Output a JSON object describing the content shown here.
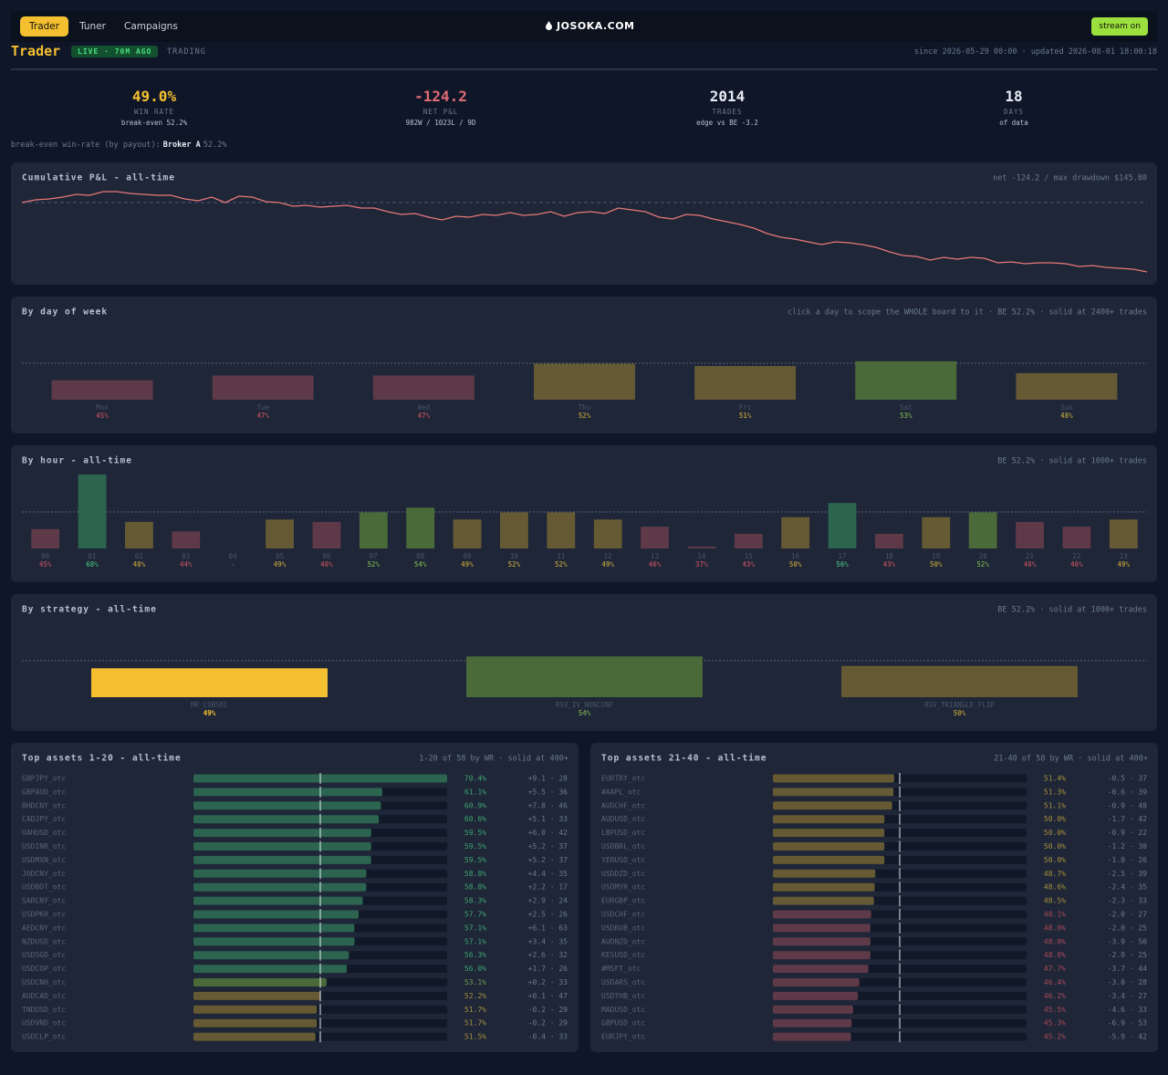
{
  "nav": {
    "tabs": [
      "Trader",
      "Tuner",
      "Campaigns"
    ],
    "active": 0,
    "brand": "JOSOKA.COM",
    "button": "stream on"
  },
  "header": {
    "title": "Trader",
    "badge": "LIVE · 70M AGO",
    "mode": "TRADING",
    "meta": "since 2026-05-29 00:00 · updated 2026-08-01 18:00:18"
  },
  "stats": [
    {
      "value": "49.0%",
      "label": "WIN RATE",
      "sub": "break-even 52.2%",
      "color": "#f5c030"
    },
    {
      "value": "-124.2",
      "label": "NET P&L",
      "sub": "982W / 1023L / 9D",
      "color": "#e06c75"
    },
    {
      "value": "2014",
      "label": "TRADES",
      "sub": "edge vs BE -3.2",
      "color": "#e6ebf2"
    },
    {
      "value": "18",
      "label": "DAYS",
      "sub": "of data",
      "color": "#e6ebf2"
    }
  ],
  "note": {
    "text": "break-even win-rate (by payout):",
    "broker": "Broker A",
    "rate": "52.2%"
  },
  "palette": {
    "bad": {
      "bar": "#5e3a48",
      "text": "#a84a58"
    },
    "mid": {
      "bar": "#665a34",
      "text": "#a88f3a"
    },
    "good": {
      "bar": "#4b6a3a",
      "text": "#6f9a4c"
    },
    "strong": {
      "bar": "#2c6450",
      "text": "#3fa46e"
    },
    "sel": {
      "bar": "#f5c030",
      "text": "#f5c030"
    }
  },
  "chart_data": [
    {
      "type": "line",
      "title": "Cumulative P&L - all-time",
      "subtitle": "net -124.2 / max drawdown $145.80",
      "color": "#e87878",
      "reference": 0,
      "values": [
        0,
        4.9,
        6.5,
        9.8,
        14.7,
        13.1,
        19.6,
        19.6,
        16.3,
        14.7,
        13.1,
        13.1,
        6.5,
        3.3,
        9.8,
        0,
        11.4,
        9.8,
        1.6,
        0,
        -6.5,
        -4.9,
        -8.2,
        -6.5,
        -4.9,
        -9.8,
        -9.8,
        -16.3,
        -21.2,
        -19.6,
        -26.1,
        -31,
        -24.5,
        -26.1,
        -21.2,
        -22.9,
        -18,
        -22.9,
        -21.2,
        -16.3,
        -24.5,
        -18,
        -16.3,
        -19.6,
        -9.8,
        -13.1,
        -16.3,
        -26.1,
        -29.4,
        -21.2,
        -22.9,
        -29.4,
        -34.3,
        -39.2,
        -45.8,
        -55.6,
        -62.1,
        -65.4,
        -70.3,
        -75.2,
        -70.3,
        -71.9,
        -75.2,
        -80.1,
        -88.2,
        -94.8,
        -96.4,
        -102.9,
        -98,
        -101.3,
        -98,
        -99.7,
        -107.8,
        -106.2,
        -109.5,
        -107.8,
        -107.8,
        -109.5,
        -114.4,
        -112.7,
        -116,
        -117.6,
        -119.3,
        -124.2
      ]
    },
    {
      "type": "bar",
      "title": "By day of week",
      "subtitle": "click a day to scope the WHOLE board to it · BE 52.2% · solid at 2400+ trades",
      "reference": 52.2,
      "categories": [
        "Mon",
        "Tue",
        "Wed",
        "Thu",
        "Fri",
        "Sat",
        "Sun"
      ],
      "values": [
        45,
        47,
        47,
        52,
        51,
        53,
        48
      ],
      "value_labels": [
        "45%",
        "47%",
        "47%",
        "52%",
        "51%",
        "53%",
        "48%"
      ],
      "tones": [
        "bad",
        "bad",
        "bad",
        "mid",
        "mid",
        "good",
        "mid"
      ]
    },
    {
      "type": "bar",
      "title": "By hour - all-time",
      "subtitle": "BE 52.2% · solid at 1000+ trades",
      "reference": 52.2,
      "categories": [
        "00",
        "01",
        "02",
        "03",
        "04",
        "05",
        "06",
        "07",
        "08",
        "09",
        "10",
        "11",
        "12",
        "13",
        "14",
        "15",
        "16",
        "17",
        "18",
        "19",
        "20",
        "21",
        "22",
        "23"
      ],
      "values": [
        45,
        68,
        48,
        44,
        null,
        49,
        48,
        52,
        54,
        49,
        52,
        52,
        49,
        46,
        37,
        43,
        50,
        56,
        43,
        50,
        52,
        48,
        46,
        49
      ],
      "value_labels": [
        "45%",
        "68%",
        "48%",
        "44%",
        "-",
        "49%",
        "48%",
        "52%",
        "54%",
        "49%",
        "52%",
        "52%",
        "49%",
        "46%",
        "37%",
        "43%",
        "50%",
        "56%",
        "43%",
        "50%",
        "52%",
        "48%",
        "46%",
        "49%"
      ],
      "tones": [
        "bad",
        "strong",
        "mid",
        "bad",
        null,
        "mid",
        "bad",
        "good",
        "good",
        "mid",
        "mid",
        "mid",
        "mid",
        "bad",
        "bad",
        "bad",
        "mid",
        "strong",
        "bad",
        "mid",
        "good",
        "bad",
        "bad",
        "mid"
      ]
    },
    {
      "type": "bar",
      "title": "By strategy - all-time",
      "subtitle": "BE 52.2% · solid at 1000+ trades",
      "reference": 52.2,
      "categories": [
        "MR_COBSEC",
        "RSV_IV_NONCONF",
        "RSV_TRIANGLE_FLIP"
      ],
      "values": [
        49,
        54,
        50
      ],
      "value_labels": [
        "49%",
        "54%",
        "50%"
      ],
      "tones": [
        "sel",
        "good",
        "mid"
      ]
    }
  ],
  "tables": [
    {
      "title": "Top assets 1-20 - all-time",
      "subtitle": "1-20 of 58 by WR · solid at 400+",
      "reference": 52.2,
      "rows": [
        {
          "asset": "GBPJPY_otc",
          "wr": 70.4,
          "wr_label": "70.4%",
          "stat": "+9.1 · 28",
          "tone": "strong"
        },
        {
          "asset": "GBPAUD_otc",
          "wr": 61.1,
          "wr_label": "61.1%",
          "stat": "+5.5 · 36",
          "tone": "strong"
        },
        {
          "asset": "BHDCNY_otc",
          "wr": 60.9,
          "wr_label": "60.9%",
          "stat": "+7.8 · 46",
          "tone": "strong"
        },
        {
          "asset": "CADJPY_otc",
          "wr": 60.6,
          "wr_label": "60.6%",
          "stat": "+5.1 · 33",
          "tone": "strong"
        },
        {
          "asset": "UAHUSD_otc",
          "wr": 59.5,
          "wr_label": "59.5%",
          "stat": "+6.0 · 42",
          "tone": "strong"
        },
        {
          "asset": "USDINR_otc",
          "wr": 59.5,
          "wr_label": "59.5%",
          "stat": "+5.2 · 37",
          "tone": "strong"
        },
        {
          "asset": "USDMXN_otc",
          "wr": 59.5,
          "wr_label": "59.5%",
          "stat": "+5.2 · 37",
          "tone": "strong"
        },
        {
          "asset": "JODCNY_otc",
          "wr": 58.8,
          "wr_label": "58.8%",
          "stat": "+4.4 · 35",
          "tone": "strong"
        },
        {
          "asset": "USDBDT_otc",
          "wr": 58.8,
          "wr_label": "58.8%",
          "stat": "+2.2 · 17",
          "tone": "strong"
        },
        {
          "asset": "SARCNY_otc",
          "wr": 58.3,
          "wr_label": "58.3%",
          "stat": "+2.9 · 24",
          "tone": "strong"
        },
        {
          "asset": "USDPKR_otc",
          "wr": 57.7,
          "wr_label": "57.7%",
          "stat": "+2.5 · 26",
          "tone": "strong"
        },
        {
          "asset": "AEDCNY_otc",
          "wr": 57.1,
          "wr_label": "57.1%",
          "stat": "+6.1 · 63",
          "tone": "strong"
        },
        {
          "asset": "NZDUSD_otc",
          "wr": 57.1,
          "wr_label": "57.1%",
          "stat": "+3.4 · 35",
          "tone": "strong"
        },
        {
          "asset": "USDSGD_otc",
          "wr": 56.3,
          "wr_label": "56.3%",
          "stat": "+2.6 · 32",
          "tone": "strong"
        },
        {
          "asset": "USDCOP_otc",
          "wr": 56,
          "wr_label": "56.0%",
          "stat": "+1.7 · 26",
          "tone": "strong"
        },
        {
          "asset": "USDCNH_otc",
          "wr": 53.1,
          "wr_label": "53.1%",
          "stat": "+0.2 · 33",
          "tone": "good"
        },
        {
          "asset": "AUDCAD_otc",
          "wr": 52.2,
          "wr_label": "52.2%",
          "stat": "+0.1 · 47",
          "tone": "mid"
        },
        {
          "asset": "TNDUSD_otc",
          "wr": 51.7,
          "wr_label": "51.7%",
          "stat": "-0.2 · 29",
          "tone": "mid"
        },
        {
          "asset": "USDVND_otc",
          "wr": 51.7,
          "wr_label": "51.7%",
          "stat": "-0.2 · 29",
          "tone": "mid"
        },
        {
          "asset": "USDCLP_otc",
          "wr": 51.5,
          "wr_label": "51.5%",
          "stat": "-0.4 · 33",
          "tone": "mid"
        }
      ]
    },
    {
      "title": "Top assets 21-40 - all-time",
      "subtitle": "21-40 of 58 by WR · solid at 400+",
      "reference": 52.2,
      "rows": [
        {
          "asset": "EURTRY_otc",
          "wr": 51.4,
          "wr_label": "51.4%",
          "stat": "-0.5 · 37",
          "tone": "mid"
        },
        {
          "asset": "#AAPL_otc",
          "wr": 51.3,
          "wr_label": "51.3%",
          "stat": "-0.6 · 39",
          "tone": "mid"
        },
        {
          "asset": "AUDCHF_otc",
          "wr": 51.1,
          "wr_label": "51.1%",
          "stat": "-0.9 · 48",
          "tone": "mid"
        },
        {
          "asset": "AUDUSD_otc",
          "wr": 50,
          "wr_label": "50.0%",
          "stat": "-1.7 · 42",
          "tone": "mid"
        },
        {
          "asset": "LBPUSD_otc",
          "wr": 50,
          "wr_label": "50.0%",
          "stat": "-0.9 · 22",
          "tone": "mid"
        },
        {
          "asset": "USDBRL_otc",
          "wr": 50,
          "wr_label": "50.0%",
          "stat": "-1.2 · 30",
          "tone": "mid"
        },
        {
          "asset": "YERUSD_otc",
          "wr": 50,
          "wr_label": "50.0%",
          "stat": "-1.0 · 26",
          "tone": "mid"
        },
        {
          "asset": "USDDZD_otc",
          "wr": 48.7,
          "wr_label": "48.7%",
          "stat": "-2.5 · 39",
          "tone": "mid"
        },
        {
          "asset": "USDMYR_otc",
          "wr": 48.6,
          "wr_label": "48.6%",
          "stat": "-2.4 · 35",
          "tone": "mid"
        },
        {
          "asset": "EURGBP_otc",
          "wr": 48.5,
          "wr_label": "48.5%",
          "stat": "-2.3 · 33",
          "tone": "mid"
        },
        {
          "asset": "USDCHF_otc",
          "wr": 48.1,
          "wr_label": "48.1%",
          "stat": "-2.0 · 27",
          "tone": "bad"
        },
        {
          "asset": "USDRUB_otc",
          "wr": 48,
          "wr_label": "48.0%",
          "stat": "-2.0 · 25",
          "tone": "bad"
        },
        {
          "asset": "AUDNZD_otc",
          "wr": 48,
          "wr_label": "48.0%",
          "stat": "-3.9 · 50",
          "tone": "bad"
        },
        {
          "asset": "KESUSD_otc",
          "wr": 48,
          "wr_label": "48.0%",
          "stat": "-2.0 · 25",
          "tone": "bad"
        },
        {
          "asset": "#MSFT_otc",
          "wr": 47.7,
          "wr_label": "47.7%",
          "stat": "-3.7 · 44",
          "tone": "bad"
        },
        {
          "asset": "USDARS_otc",
          "wr": 46.4,
          "wr_label": "46.4%",
          "stat": "-3.0 · 28",
          "tone": "bad"
        },
        {
          "asset": "USDTHB_otc",
          "wr": 46.2,
          "wr_label": "46.2%",
          "stat": "-3.4 · 27",
          "tone": "bad"
        },
        {
          "asset": "MADUSD_otc",
          "wr": 45.5,
          "wr_label": "45.5%",
          "stat": "-4.6 · 33",
          "tone": "bad"
        },
        {
          "asset": "GBPUSD_otc",
          "wr": 45.3,
          "wr_label": "45.3%",
          "stat": "-6.9 · 53",
          "tone": "bad"
        },
        {
          "asset": "EURJPY_otc",
          "wr": 45.2,
          "wr_label": "45.2%",
          "stat": "-5.9 · 42",
          "tone": "bad"
        }
      ]
    }
  ]
}
